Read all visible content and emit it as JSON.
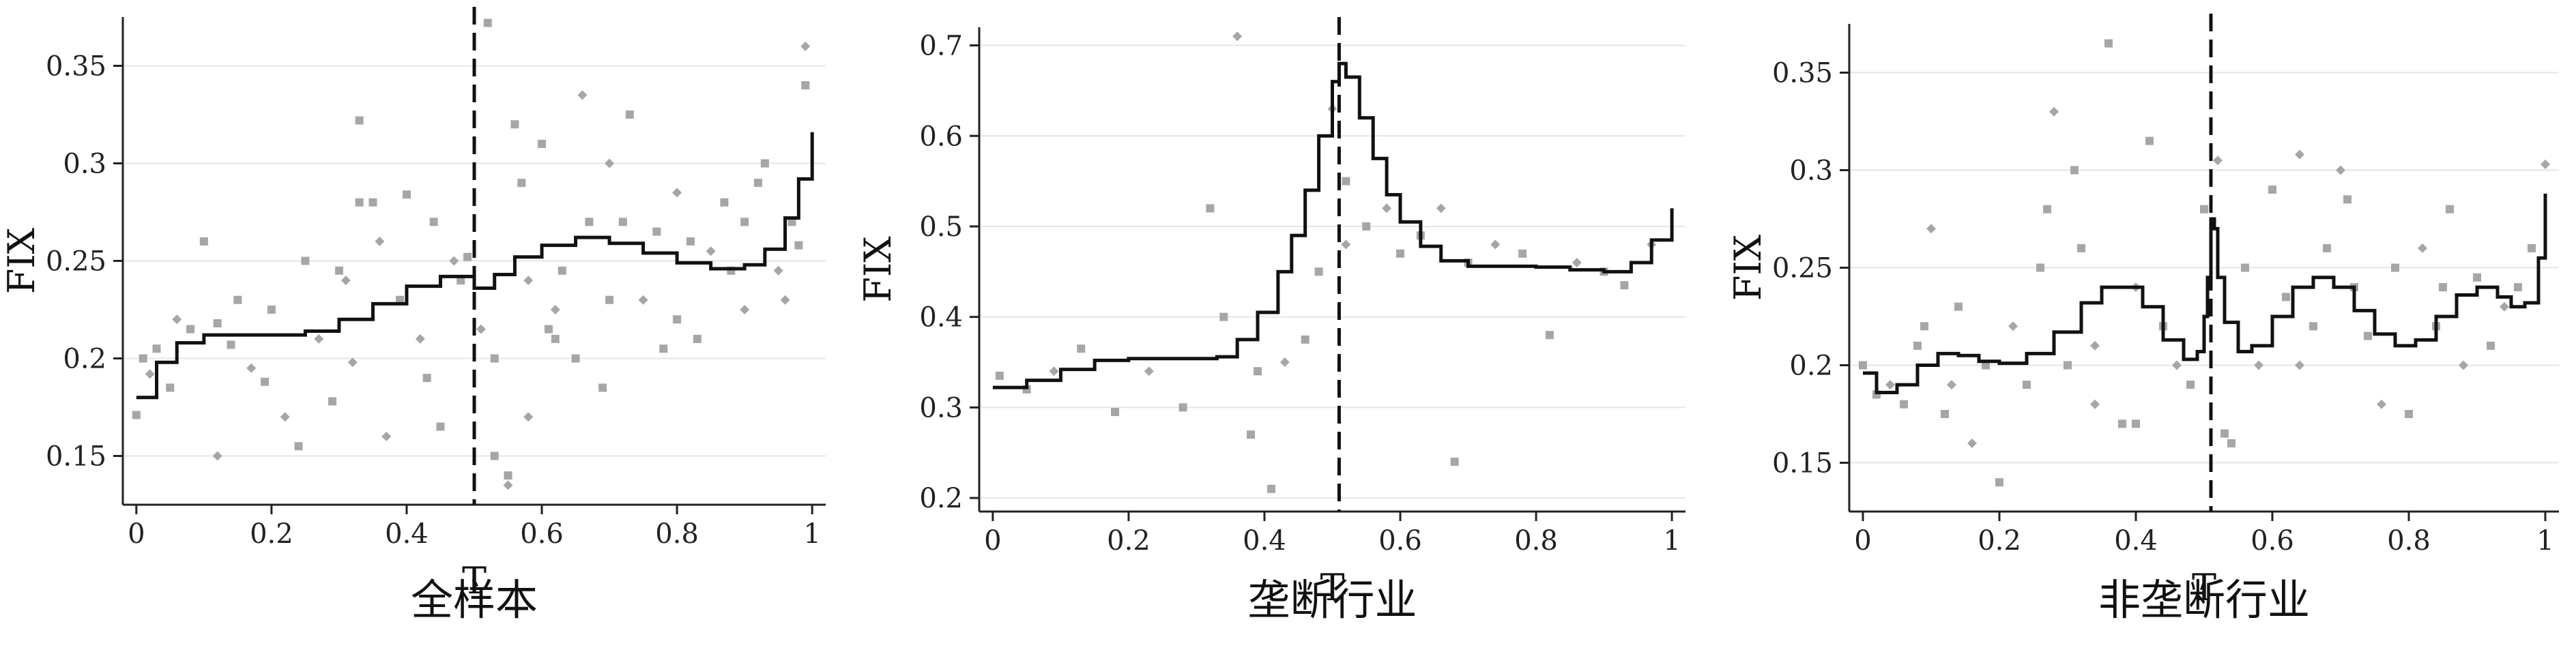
{
  "chart_data": [
    {
      "type": "scatter",
      "caption": "全样本",
      "xlabel": "T",
      "ylabel": "FIX",
      "xlim": [
        -0.02,
        1.02
      ],
      "ylim": [
        0.125,
        0.375
      ],
      "xticks": [
        "0",
        "0.2",
        "0.4",
        "0.6",
        "0.8",
        "1"
      ],
      "yticks": [
        "0.15",
        "0.2",
        "0.25",
        "0.3",
        "0.35"
      ],
      "cutoff": 0.5,
      "grid": "horizontal",
      "fit_line": {
        "x": [
          0.0,
          0.03,
          0.06,
          0.1,
          0.15,
          0.2,
          0.25,
          0.3,
          0.35,
          0.4,
          0.45,
          0.48,
          0.5,
          0.53,
          0.56,
          0.6,
          0.65,
          0.7,
          0.75,
          0.8,
          0.85,
          0.9,
          0.93,
          0.96,
          0.98,
          1.0
        ],
        "y": [
          0.18,
          0.198,
          0.208,
          0.212,
          0.212,
          0.212,
          0.214,
          0.22,
          0.228,
          0.237,
          0.242,
          0.242,
          0.236,
          0.243,
          0.252,
          0.258,
          0.262,
          0.259,
          0.254,
          0.249,
          0.246,
          0.248,
          0.256,
          0.272,
          0.292,
          0.316
        ]
      },
      "points": {
        "x": [
          0.0,
          0.01,
          0.02,
          0.03,
          0.05,
          0.06,
          0.08,
          0.1,
          0.12,
          0.14,
          0.15,
          0.17,
          0.19,
          0.2,
          0.22,
          0.24,
          0.25,
          0.27,
          0.29,
          0.3,
          0.32,
          0.33,
          0.35,
          0.37,
          0.39,
          0.4,
          0.42,
          0.43,
          0.45,
          0.47,
          0.48,
          0.49,
          0.51,
          0.52,
          0.53,
          0.55,
          0.56,
          0.57,
          0.58,
          0.6,
          0.61,
          0.62,
          0.63,
          0.65,
          0.66,
          0.67,
          0.69,
          0.7,
          0.72,
          0.73,
          0.75,
          0.77,
          0.78,
          0.8,
          0.82,
          0.83,
          0.85,
          0.87,
          0.88,
          0.9,
          0.92,
          0.93,
          0.95,
          0.97,
          0.98,
          0.99,
          0.12,
          0.33,
          0.36,
          0.53,
          0.55,
          0.58,
          0.8,
          0.9,
          0.96,
          0.99,
          0.44,
          0.31,
          0.62,
          0.7
        ],
        "y": [
          0.171,
          0.2,
          0.192,
          0.205,
          0.185,
          0.22,
          0.215,
          0.26,
          0.15,
          0.207,
          0.23,
          0.195,
          0.188,
          0.225,
          0.17,
          0.155,
          0.25,
          0.21,
          0.178,
          0.245,
          0.198,
          0.322,
          0.28,
          0.16,
          0.23,
          0.284,
          0.21,
          0.19,
          0.165,
          0.25,
          0.24,
          0.252,
          0.215,
          0.372,
          0.2,
          0.135,
          0.32,
          0.29,
          0.17,
          0.31,
          0.215,
          0.225,
          0.245,
          0.2,
          0.335,
          0.27,
          0.185,
          0.3,
          0.27,
          0.325,
          0.23,
          0.265,
          0.205,
          0.285,
          0.26,
          0.21,
          0.255,
          0.28,
          0.245,
          0.225,
          0.29,
          0.3,
          0.245,
          0.27,
          0.258,
          0.36,
          0.218,
          0.28,
          0.26,
          0.15,
          0.14,
          0.24,
          0.22,
          0.27,
          0.23,
          0.34,
          0.27,
          0.24,
          0.21,
          0.23
        ]
      }
    },
    {
      "type": "scatter",
      "caption": "垄断行业",
      "xlabel": "T",
      "ylabel": "FIX",
      "xlim": [
        -0.02,
        1.02
      ],
      "ylim": [
        0.185,
        0.72
      ],
      "xticks": [
        "0",
        "0.2",
        "0.4",
        "0.6",
        "0.8",
        "1"
      ],
      "yticks": [
        "0.2",
        "0.3",
        "0.4",
        "0.5",
        "0.6",
        "0.7"
      ],
      "cutoff": 0.51,
      "grid": "horizontal",
      "fit_line": {
        "x": [
          0.0,
          0.05,
          0.1,
          0.15,
          0.2,
          0.25,
          0.3,
          0.33,
          0.36,
          0.39,
          0.42,
          0.44,
          0.46,
          0.48,
          0.5,
          0.51,
          0.52,
          0.54,
          0.56,
          0.58,
          0.6,
          0.63,
          0.66,
          0.7,
          0.75,
          0.8,
          0.85,
          0.9,
          0.94,
          0.97,
          1.0
        ],
        "y": [
          0.322,
          0.33,
          0.342,
          0.352,
          0.354,
          0.354,
          0.354,
          0.356,
          0.375,
          0.405,
          0.45,
          0.49,
          0.54,
          0.6,
          0.66,
          0.68,
          0.665,
          0.62,
          0.575,
          0.535,
          0.505,
          0.478,
          0.462,
          0.456,
          0.456,
          0.455,
          0.452,
          0.45,
          0.46,
          0.485,
          0.52
        ]
      },
      "points": {
        "x": [
          0.01,
          0.05,
          0.09,
          0.13,
          0.18,
          0.23,
          0.28,
          0.32,
          0.36,
          0.38,
          0.41,
          0.43,
          0.46,
          0.48,
          0.5,
          0.52,
          0.55,
          0.58,
          0.6,
          0.63,
          0.66,
          0.68,
          0.7,
          0.74,
          0.78,
          0.82,
          0.86,
          0.9,
          0.93,
          0.97,
          0.34,
          0.39,
          0.52
        ],
        "y": [
          0.335,
          0.32,
          0.34,
          0.365,
          0.295,
          0.34,
          0.3,
          0.52,
          0.71,
          0.27,
          0.21,
          0.35,
          0.375,
          0.45,
          0.63,
          0.55,
          0.5,
          0.52,
          0.47,
          0.49,
          0.52,
          0.24,
          0.46,
          0.48,
          0.47,
          0.38,
          0.46,
          0.45,
          0.435,
          0.48,
          0.4,
          0.34,
          0.48
        ]
      }
    },
    {
      "type": "scatter",
      "caption": "非垄断行业",
      "xlabel": "T",
      "ylabel": "FIX",
      "xlim": [
        -0.02,
        1.02
      ],
      "ylim": [
        0.125,
        0.375
      ],
      "xticks": [
        "0",
        "0.2",
        "0.4",
        "0.6",
        "0.8",
        "1"
      ],
      "yticks": [
        "0.15",
        "0.2",
        "0.25",
        "0.3",
        "0.35"
      ],
      "cutoff": 0.51,
      "grid": "horizontal",
      "fit_line": {
        "x": [
          0.0,
          0.02,
          0.05,
          0.08,
          0.11,
          0.14,
          0.17,
          0.2,
          0.24,
          0.28,
          0.32,
          0.35,
          0.38,
          0.41,
          0.44,
          0.47,
          0.49,
          0.5,
          0.505,
          0.51,
          0.515,
          0.52,
          0.53,
          0.55,
          0.57,
          0.6,
          0.63,
          0.66,
          0.69,
          0.72,
          0.75,
          0.78,
          0.81,
          0.84,
          0.87,
          0.9,
          0.93,
          0.95,
          0.97,
          0.99,
          1.0
        ],
        "y": [
          0.196,
          0.186,
          0.19,
          0.2,
          0.206,
          0.205,
          0.202,
          0.201,
          0.206,
          0.217,
          0.232,
          0.24,
          0.24,
          0.23,
          0.213,
          0.203,
          0.207,
          0.225,
          0.245,
          0.275,
          0.27,
          0.245,
          0.222,
          0.207,
          0.21,
          0.225,
          0.24,
          0.245,
          0.24,
          0.228,
          0.216,
          0.21,
          0.213,
          0.225,
          0.236,
          0.24,
          0.235,
          0.23,
          0.232,
          0.255,
          0.288
        ]
      },
      "points": {
        "x": [
          0.0,
          0.02,
          0.04,
          0.06,
          0.08,
          0.1,
          0.12,
          0.14,
          0.16,
          0.18,
          0.2,
          0.22,
          0.24,
          0.26,
          0.28,
          0.3,
          0.32,
          0.34,
          0.36,
          0.38,
          0.4,
          0.42,
          0.44,
          0.46,
          0.48,
          0.5,
          0.52,
          0.54,
          0.56,
          0.58,
          0.6,
          0.62,
          0.64,
          0.66,
          0.68,
          0.7,
          0.72,
          0.74,
          0.76,
          0.78,
          0.8,
          0.82,
          0.84,
          0.86,
          0.88,
          0.9,
          0.92,
          0.94,
          0.96,
          0.98,
          1.0,
          0.09,
          0.27,
          0.34,
          0.4,
          0.53,
          0.64,
          0.71,
          0.85,
          0.13,
          0.31
        ],
        "y": [
          0.2,
          0.185,
          0.19,
          0.18,
          0.21,
          0.27,
          0.175,
          0.23,
          0.16,
          0.2,
          0.14,
          0.22,
          0.19,
          0.25,
          0.33,
          0.2,
          0.26,
          0.18,
          0.365,
          0.17,
          0.24,
          0.315,
          0.22,
          0.2,
          0.19,
          0.28,
          0.305,
          0.16,
          0.25,
          0.2,
          0.29,
          0.235,
          0.308,
          0.22,
          0.26,
          0.3,
          0.24,
          0.215,
          0.18,
          0.25,
          0.175,
          0.26,
          0.22,
          0.28,
          0.2,
          0.245,
          0.21,
          0.23,
          0.24,
          0.26,
          0.303,
          0.22,
          0.28,
          0.21,
          0.17,
          0.165,
          0.2,
          0.285,
          0.24,
          0.19,
          0.3
        ]
      }
    }
  ]
}
